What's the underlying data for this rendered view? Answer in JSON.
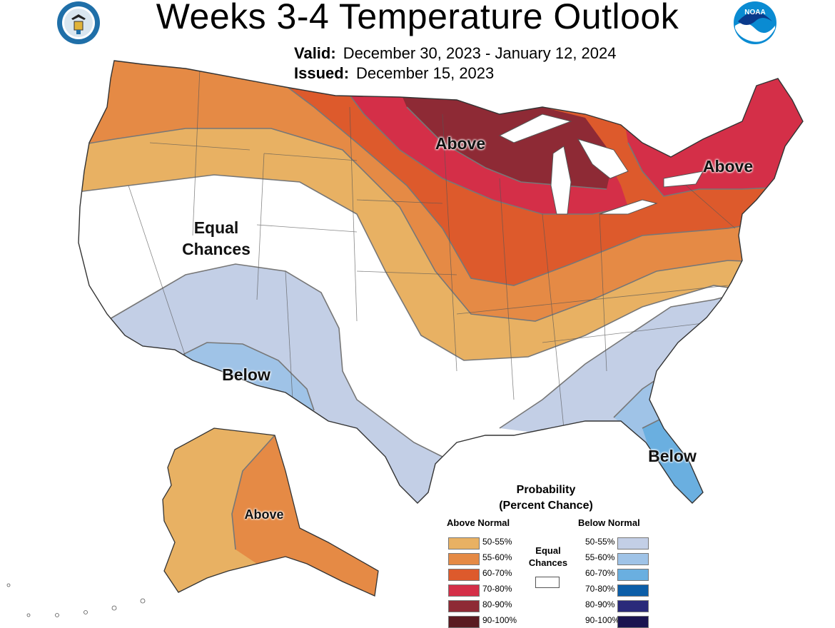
{
  "header": {
    "title": "Weeks 3-4 Temperature Outlook",
    "valid_label": "Valid:",
    "valid_value": "December 30, 2023 - January 12, 2024",
    "issued_label": "Issued:",
    "issued_value": "December 15, 2023"
  },
  "logos": {
    "left": "department-of-commerce-seal",
    "right": "noaa-logo",
    "right_text": "NOAA"
  },
  "map_labels": {
    "above_north": "Above",
    "above_northeast": "Above",
    "equal_chances": "Equal Chances",
    "below_southwest": "Below",
    "below_florida": "Below",
    "above_alaska": "Above"
  },
  "legend": {
    "title_line1": "Probability",
    "title_line2": "(Percent Chance)",
    "above_heading": "Above Normal",
    "below_heading": "Below Normal",
    "equal_heading": "Equal Chances",
    "above_items": [
      {
        "label": "50-55%",
        "color": "#e8b163"
      },
      {
        "label": "55-60%",
        "color": "#e58a45"
      },
      {
        "label": "60-70%",
        "color": "#dd5a2c"
      },
      {
        "label": "70-80%",
        "color": "#d42f48"
      },
      {
        "label": "80-90%",
        "color": "#8e2a35"
      },
      {
        "label": "90-100%",
        "color": "#5a1a20"
      }
    ],
    "below_items": [
      {
        "label": "50-55%",
        "color": "#c3cfe6"
      },
      {
        "label": "55-60%",
        "color": "#9fc3e7"
      },
      {
        "label": "60-70%",
        "color": "#6aafe0"
      },
      {
        "label": "70-80%",
        "color": "#0c5ea8"
      },
      {
        "label": "80-90%",
        "color": "#2a2a7a"
      },
      {
        "label": "90-100%",
        "color": "#1a1450"
      }
    ]
  }
}
